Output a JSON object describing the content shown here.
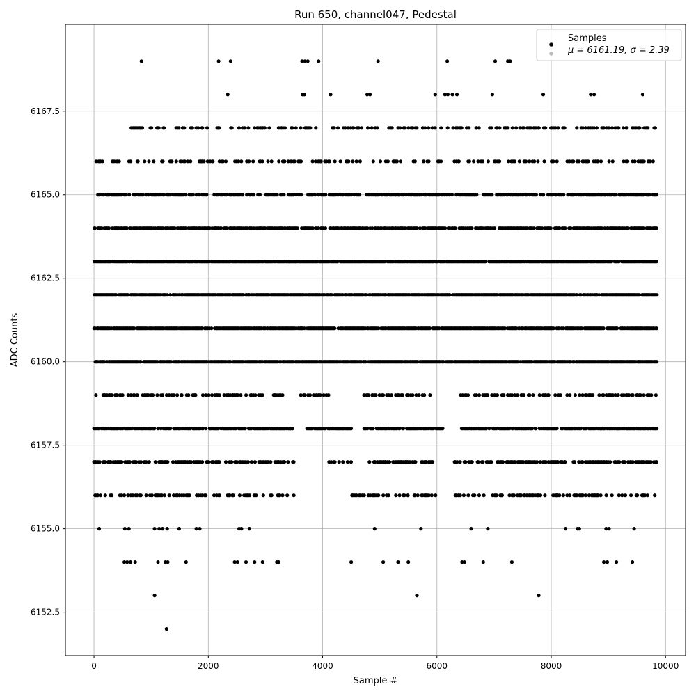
{
  "chart_data": {
    "type": "scatter",
    "title": "Run 650, channel047, Pedestal",
    "xlabel": "Sample #",
    "ylabel": "ADC Counts",
    "xlim": [
      -500,
      10350
    ],
    "ylim": [
      6151.2,
      6170.1
    ],
    "xticks": [
      0,
      2000,
      4000,
      6000,
      8000,
      10000
    ],
    "yticks": [
      6152.5,
      6155.0,
      6157.5,
      6160.0,
      6162.5,
      6165.0,
      6167.5
    ],
    "grid": true,
    "legend": {
      "placement": "top-right",
      "entries": [
        "Samples",
        "μ = 6161.19, σ = 2.39"
      ]
    },
    "marker_color": "#000000",
    "series": [
      {
        "name": "Samples",
        "n_points": 9850,
        "mean": 6161.19,
        "sigma": 2.39,
        "levels": [
          {
            "y": 6160,
            "x_range": [
              0,
              9850
            ],
            "density": 0.9
          },
          {
            "y": 6161,
            "x_range": [
              0,
              9850
            ],
            "density": 0.88
          },
          {
            "y": 6162,
            "x_range": [
              0,
              9850
            ],
            "density": 0.88
          },
          {
            "y": 6163,
            "x_range": [
              0,
              9850
            ],
            "density": 0.9
          },
          {
            "y": 6164,
            "x_range": [
              0,
              9850
            ],
            "density": 0.7
          },
          {
            "y": 6158,
            "x_range": [
              0,
              9850
            ],
            "density": 0.7,
            "gaps": [
              [
                3500,
                3700
              ],
              [
                4500,
                4700
              ],
              [
                6100,
                6400
              ]
            ]
          },
          {
            "y": 6165,
            "x_range": [
              50,
              9850
            ],
            "density": 0.55
          },
          {
            "y": 6157,
            "x_range": [
              0,
              9850
            ],
            "density": 0.5,
            "gaps": [
              [
                3500,
                4100
              ],
              [
                4500,
                4800
              ],
              [
                6000,
                6300
              ]
            ]
          },
          {
            "y": 6159,
            "x_range": [
              0,
              9850
            ],
            "density": 0.35,
            "gaps": [
              [
                3300,
                3600
              ],
              [
                4100,
                4700
              ],
              [
                5900,
                6400
              ]
            ]
          },
          {
            "y": 6156,
            "x_range": [
              0,
              9850
            ],
            "density": 0.35,
            "gaps": [
              [
                3500,
                4500
              ],
              [
                6000,
                6300
              ]
            ]
          },
          {
            "y": 6166,
            "x_range": [
              0,
              9850
            ],
            "density": 0.28
          },
          {
            "y": 6167,
            "x_range": [
              600,
              9850
            ],
            "density": 0.28
          }
        ],
        "outliers": [
          {
            "x": 830,
            "y": 6169
          },
          {
            "x": 2180,
            "y": 6169
          },
          {
            "x": 2390,
            "y": 6169
          },
          {
            "x": 3640,
            "y": 6169
          },
          {
            "x": 3690,
            "y": 6169
          },
          {
            "x": 3740,
            "y": 6169
          },
          {
            "x": 3930,
            "y": 6169
          },
          {
            "x": 4970,
            "y": 6169
          },
          {
            "x": 6180,
            "y": 6169
          },
          {
            "x": 7020,
            "y": 6169
          },
          {
            "x": 7240,
            "y": 6169
          },
          {
            "x": 7280,
            "y": 6169
          },
          {
            "x": 2340,
            "y": 6168
          },
          {
            "x": 3650,
            "y": 6168
          },
          {
            "x": 3680,
            "y": 6168
          },
          {
            "x": 4140,
            "y": 6168
          },
          {
            "x": 4780,
            "y": 6168
          },
          {
            "x": 4830,
            "y": 6168
          },
          {
            "x": 5970,
            "y": 6168
          },
          {
            "x": 6140,
            "y": 6168
          },
          {
            "x": 6190,
            "y": 6168
          },
          {
            "x": 6270,
            "y": 6168
          },
          {
            "x": 6350,
            "y": 6168
          },
          {
            "x": 6970,
            "y": 6168
          },
          {
            "x": 7860,
            "y": 6168
          },
          {
            "x": 8690,
            "y": 6168
          },
          {
            "x": 8750,
            "y": 6168
          },
          {
            "x": 9600,
            "y": 6168
          },
          {
            "x": 90,
            "y": 6155
          },
          {
            "x": 540,
            "y": 6155
          },
          {
            "x": 610,
            "y": 6155
          },
          {
            "x": 1060,
            "y": 6155
          },
          {
            "x": 1140,
            "y": 6155
          },
          {
            "x": 1200,
            "y": 6155
          },
          {
            "x": 1280,
            "y": 6155
          },
          {
            "x": 1490,
            "y": 6155
          },
          {
            "x": 1790,
            "y": 6155
          },
          {
            "x": 1850,
            "y": 6155
          },
          {
            "x": 2540,
            "y": 6155
          },
          {
            "x": 2580,
            "y": 6155
          },
          {
            "x": 2720,
            "y": 6155
          },
          {
            "x": 4910,
            "y": 6155
          },
          {
            "x": 5720,
            "y": 6155
          },
          {
            "x": 6600,
            "y": 6155
          },
          {
            "x": 6890,
            "y": 6155
          },
          {
            "x": 8250,
            "y": 6155
          },
          {
            "x": 8460,
            "y": 6155
          },
          {
            "x": 8490,
            "y": 6155
          },
          {
            "x": 8960,
            "y": 6155
          },
          {
            "x": 9010,
            "y": 6155
          },
          {
            "x": 9450,
            "y": 6155
          },
          {
            "x": 530,
            "y": 6154
          },
          {
            "x": 580,
            "y": 6154
          },
          {
            "x": 640,
            "y": 6154
          },
          {
            "x": 720,
            "y": 6154
          },
          {
            "x": 1120,
            "y": 6154
          },
          {
            "x": 1250,
            "y": 6154
          },
          {
            "x": 1290,
            "y": 6154
          },
          {
            "x": 1610,
            "y": 6154
          },
          {
            "x": 2460,
            "y": 6154
          },
          {
            "x": 2510,
            "y": 6154
          },
          {
            "x": 2660,
            "y": 6154
          },
          {
            "x": 2810,
            "y": 6154
          },
          {
            "x": 2950,
            "y": 6154
          },
          {
            "x": 3200,
            "y": 6154
          },
          {
            "x": 3230,
            "y": 6154
          },
          {
            "x": 4500,
            "y": 6154
          },
          {
            "x": 5060,
            "y": 6154
          },
          {
            "x": 5320,
            "y": 6154
          },
          {
            "x": 5500,
            "y": 6154
          },
          {
            "x": 6440,
            "y": 6154
          },
          {
            "x": 6480,
            "y": 6154
          },
          {
            "x": 6810,
            "y": 6154
          },
          {
            "x": 7310,
            "y": 6154
          },
          {
            "x": 8920,
            "y": 6154
          },
          {
            "x": 8980,
            "y": 6154
          },
          {
            "x": 9140,
            "y": 6154
          },
          {
            "x": 9420,
            "y": 6154
          },
          {
            "x": 1060,
            "y": 6153
          },
          {
            "x": 5650,
            "y": 6153
          },
          {
            "x": 7780,
            "y": 6153
          },
          {
            "x": 1270,
            "y": 6152
          }
        ]
      }
    ]
  }
}
